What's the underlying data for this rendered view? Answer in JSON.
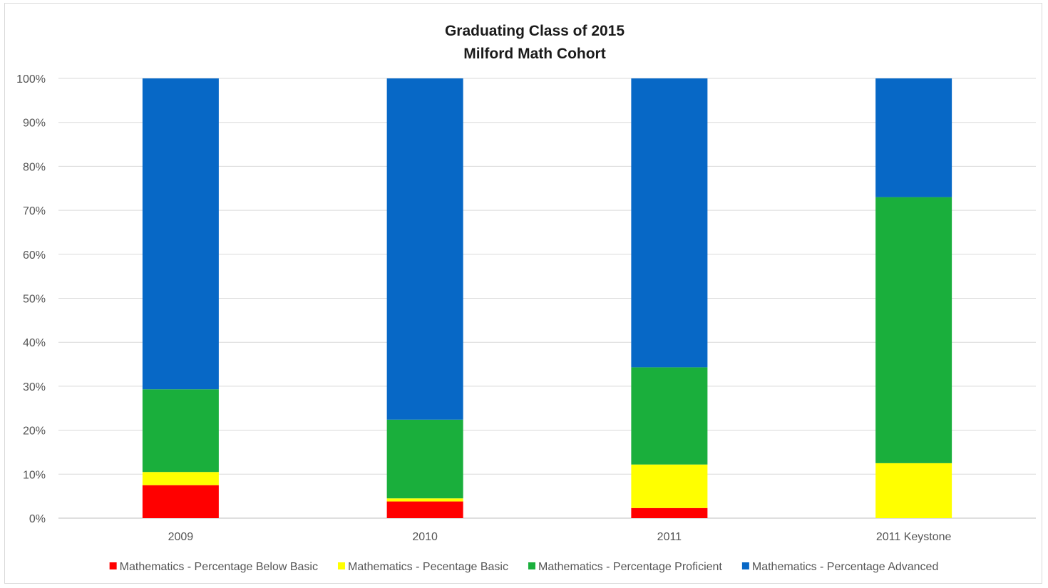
{
  "chart_data": {
    "type": "bar",
    "stacked": true,
    "title": "Graduating Class of 2015",
    "subtitle": "Milford Math Cohort",
    "categories": [
      "2009",
      "2010",
      "2011",
      "2011 Keystone"
    ],
    "y_ticks": [
      "0%",
      "10%",
      "20%",
      "30%",
      "40%",
      "50%",
      "60%",
      "70%",
      "80%",
      "90%",
      "100%"
    ],
    "ylim": [
      0,
      100
    ],
    "grid": true,
    "legend_position": "bottom",
    "series": [
      {
        "name": "Mathematics - Percentage Below Basic",
        "color": "#ff0000",
        "values": [
          7.5,
          3.8,
          2.3,
          0
        ]
      },
      {
        "name": "Mathematics - Pecentage Basic",
        "color": "#ffff00",
        "values": [
          3.0,
          0.7,
          9.9,
          12.5
        ]
      },
      {
        "name": "Mathematics - Percentage Proficient",
        "color": "#1aaf3c",
        "values": [
          18.8,
          17.9,
          22.1,
          60.5
        ]
      },
      {
        "name": "Mathematics - Percentage Advanced",
        "color": "#0768c6",
        "values": [
          70.7,
          77.6,
          65.7,
          27.0
        ]
      }
    ]
  }
}
